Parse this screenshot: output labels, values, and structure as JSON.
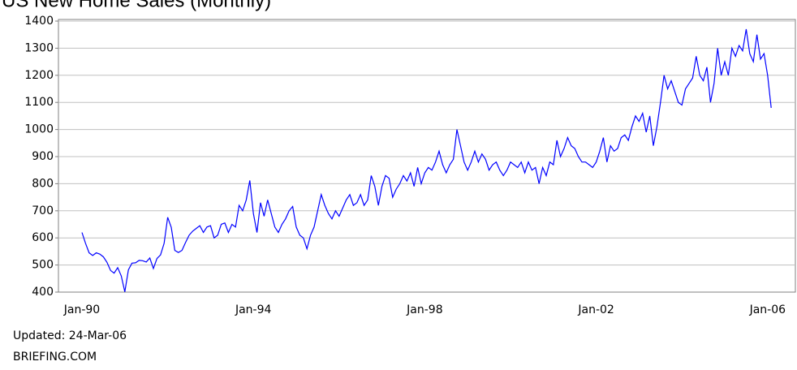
{
  "chart_data": {
    "type": "line",
    "title": "US New Home Sales (Monthly)",
    "footer": [
      "Updated: 24-Mar-06",
      "BRIEFING.COM"
    ],
    "categories": [
      "Jan-90",
      null,
      null,
      null,
      null,
      null,
      null,
      null,
      null,
      null,
      null,
      null,
      null,
      null,
      null,
      null,
      null,
      null,
      null,
      null,
      null,
      null,
      null,
      null,
      null,
      null,
      null,
      null,
      null,
      null,
      null,
      null,
      null,
      null,
      null,
      null,
      null,
      null,
      null,
      null,
      null,
      null,
      null,
      null,
      null,
      null,
      null,
      null,
      "Jan-94",
      null,
      null,
      null,
      null,
      null,
      null,
      null,
      null,
      null,
      null,
      null,
      null,
      null,
      null,
      null,
      null,
      null,
      null,
      null,
      null,
      null,
      null,
      null,
      null,
      null,
      null,
      null,
      null,
      null,
      null,
      null,
      null,
      null,
      null,
      null,
      null,
      null,
      null,
      null,
      null,
      null,
      null,
      null,
      null,
      null,
      null,
      null,
      "Jan-98",
      null,
      null,
      null,
      null,
      null,
      null,
      null,
      null,
      null,
      null,
      null,
      null,
      null,
      null,
      null,
      null,
      null,
      null,
      null,
      null,
      null,
      null,
      null,
      null,
      null,
      null,
      null,
      null,
      null,
      null,
      null,
      null,
      null,
      null,
      null,
      null,
      null,
      null,
      null,
      null,
      null,
      null,
      null,
      null,
      null,
      null,
      null,
      "Jan-02",
      null,
      null,
      null,
      null,
      null,
      null,
      null,
      null,
      null,
      null,
      null,
      null,
      null,
      null,
      null,
      null,
      null,
      null,
      null,
      null,
      null,
      null,
      null,
      null,
      null,
      null,
      null,
      null,
      null,
      null,
      null,
      null,
      null,
      null,
      null,
      null,
      null,
      null,
      null,
      null,
      null,
      null,
      null,
      null,
      null,
      null,
      null,
      "Jan-06",
      null
    ],
    "series": [
      {
        "name": "New Home Sales",
        "color": "#0000ff",
        "values": [
          620,
          580,
          545,
          535,
          545,
          540,
          530,
          510,
          480,
          470,
          490,
          460,
          401,
          482,
          507,
          508,
          517,
          516,
          511,
          526,
          487,
          524,
          537,
          580,
          676,
          639,
          554,
          546,
          554,
          583,
          610,
          625,
          635,
          645,
          620,
          640,
          645,
          600,
          610,
          650,
          655,
          620,
          650,
          640,
          720,
          700,
          740,
          812,
          690,
          620,
          730,
          680,
          740,
          690,
          640,
          620,
          650,
          670,
          700,
          716,
          640,
          610,
          600,
          560,
          610,
          640,
          700,
          760,
          720,
          690,
          670,
          700,
          680,
          710,
          740,
          760,
          720,
          730,
          760,
          720,
          740,
          830,
          790,
          720,
          790,
          830,
          820,
          750,
          780,
          800,
          830,
          810,
          840,
          790,
          860,
          800,
          840,
          860,
          850,
          880,
          920,
          870,
          840,
          870,
          890,
          1000,
          940,
          880,
          850,
          880,
          920,
          880,
          910,
          890,
          850,
          870,
          880,
          850,
          830,
          850,
          880,
          870,
          860,
          880,
          840,
          880,
          850,
          860,
          800,
          860,
          830,
          880,
          870,
          960,
          900,
          930,
          970,
          940,
          930,
          900,
          880,
          880,
          870,
          860,
          880,
          920,
          970,
          880,
          940,
          920,
          930,
          970,
          980,
          960,
          1010,
          1050,
          1030,
          1060,
          990,
          1050,
          940,
          1010,
          1100,
          1200,
          1150,
          1180,
          1140,
          1100,
          1090,
          1150,
          1170,
          1190,
          1270,
          1200,
          1180,
          1230,
          1100,
          1170,
          1300,
          1200,
          1250,
          1200,
          1300,
          1270,
          1310,
          1290,
          1370,
          1280,
          1250,
          1350,
          1260,
          1280,
          1200,
          1080
        ]
      }
    ],
    "ylim": [
      400,
      1400
    ],
    "yticks": [
      400,
      500,
      600,
      700,
      800,
      900,
      1000,
      1100,
      1200,
      1300,
      1400
    ],
    "grid": true
  }
}
